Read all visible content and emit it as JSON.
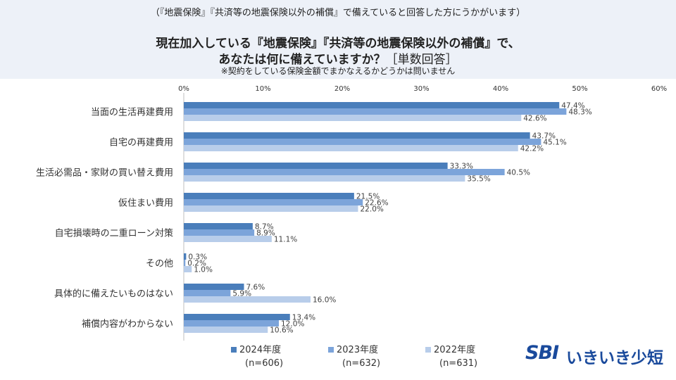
{
  "header": {
    "note_top": "（『地震保険』『共済等の地震保険以外の補償』で備えていると回答した方にうかがいます）",
    "title_line1": "現在加入している『地震保険』『共済等の地震保険以外の補償』で、",
    "title_line2": "あなたは何に備えていますか？",
    "title_tag": "［単数回答］",
    "note_bottom": "※契約をしている保険金額でまかなえるかどうかは問いません"
  },
  "colors": {
    "s2024": "#4a7ebb",
    "s2023": "#7ca4da",
    "s2022": "#b8cdea",
    "grid": "#d9d9d9",
    "text": "#333333"
  },
  "chart_data": {
    "type": "bar",
    "orientation": "horizontal",
    "categories": [
      "当面の生活再建費用",
      "自宅の再建費用",
      "生活必需品・家財の買い替え費用",
      "仮住まい費用",
      "自宅損壊時の二重ローン対策",
      "その他",
      "具体的に備えたいものはない",
      "補償内容がわからない"
    ],
    "series": [
      {
        "name": "2024年度",
        "n": "(n=606)",
        "values": [
          47.4,
          43.7,
          33.3,
          21.5,
          8.7,
          0.3,
          7.6,
          13.4
        ]
      },
      {
        "name": "2023年度",
        "n": "(n=632)",
        "values": [
          48.3,
          45.1,
          40.5,
          22.6,
          8.9,
          0.2,
          5.9,
          12.0
        ]
      },
      {
        "name": "2022年度",
        "n": "(n=631)",
        "values": [
          42.6,
          42.2,
          35.5,
          22.0,
          11.1,
          1.0,
          16.0,
          10.6
        ]
      }
    ],
    "xlim": [
      0,
      60
    ],
    "xticks": [
      "0%",
      "10%",
      "20%",
      "30%",
      "40%",
      "50%",
      "60%"
    ],
    "value_suffix": "%",
    "legend": "bottom"
  },
  "logo": {
    "brand": "SBI",
    "name": "いきいき少短"
  }
}
